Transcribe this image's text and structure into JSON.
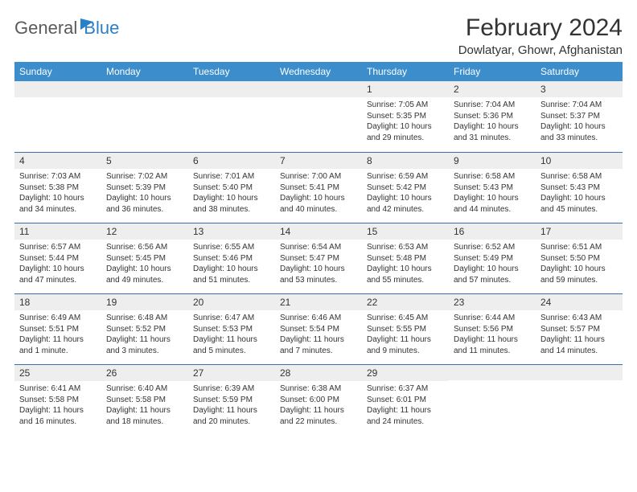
{
  "logo": {
    "general": "General",
    "blue": "Blue"
  },
  "title": "February 2024",
  "location": "Dowlatyar, Ghowr, Afghanistan",
  "header_bg": "#3c8dcc",
  "row_border": "#3c6fa6",
  "day_labels": [
    "Sunday",
    "Monday",
    "Tuesday",
    "Wednesday",
    "Thursday",
    "Friday",
    "Saturday"
  ],
  "weeks": [
    [
      null,
      null,
      null,
      null,
      {
        "n": "1",
        "rise": "7:05 AM",
        "set": "5:35 PM",
        "dl": "10 hours and 29 minutes."
      },
      {
        "n": "2",
        "rise": "7:04 AM",
        "set": "5:36 PM",
        "dl": "10 hours and 31 minutes."
      },
      {
        "n": "3",
        "rise": "7:04 AM",
        "set": "5:37 PM",
        "dl": "10 hours and 33 minutes."
      }
    ],
    [
      {
        "n": "4",
        "rise": "7:03 AM",
        "set": "5:38 PM",
        "dl": "10 hours and 34 minutes."
      },
      {
        "n": "5",
        "rise": "7:02 AM",
        "set": "5:39 PM",
        "dl": "10 hours and 36 minutes."
      },
      {
        "n": "6",
        "rise": "7:01 AM",
        "set": "5:40 PM",
        "dl": "10 hours and 38 minutes."
      },
      {
        "n": "7",
        "rise": "7:00 AM",
        "set": "5:41 PM",
        "dl": "10 hours and 40 minutes."
      },
      {
        "n": "8",
        "rise": "6:59 AM",
        "set": "5:42 PM",
        "dl": "10 hours and 42 minutes."
      },
      {
        "n": "9",
        "rise": "6:58 AM",
        "set": "5:43 PM",
        "dl": "10 hours and 44 minutes."
      },
      {
        "n": "10",
        "rise": "6:58 AM",
        "set": "5:43 PM",
        "dl": "10 hours and 45 minutes."
      }
    ],
    [
      {
        "n": "11",
        "rise": "6:57 AM",
        "set": "5:44 PM",
        "dl": "10 hours and 47 minutes."
      },
      {
        "n": "12",
        "rise": "6:56 AM",
        "set": "5:45 PM",
        "dl": "10 hours and 49 minutes."
      },
      {
        "n": "13",
        "rise": "6:55 AM",
        "set": "5:46 PM",
        "dl": "10 hours and 51 minutes."
      },
      {
        "n": "14",
        "rise": "6:54 AM",
        "set": "5:47 PM",
        "dl": "10 hours and 53 minutes."
      },
      {
        "n": "15",
        "rise": "6:53 AM",
        "set": "5:48 PM",
        "dl": "10 hours and 55 minutes."
      },
      {
        "n": "16",
        "rise": "6:52 AM",
        "set": "5:49 PM",
        "dl": "10 hours and 57 minutes."
      },
      {
        "n": "17",
        "rise": "6:51 AM",
        "set": "5:50 PM",
        "dl": "10 hours and 59 minutes."
      }
    ],
    [
      {
        "n": "18",
        "rise": "6:49 AM",
        "set": "5:51 PM",
        "dl": "11 hours and 1 minute."
      },
      {
        "n": "19",
        "rise": "6:48 AM",
        "set": "5:52 PM",
        "dl": "11 hours and 3 minutes."
      },
      {
        "n": "20",
        "rise": "6:47 AM",
        "set": "5:53 PM",
        "dl": "11 hours and 5 minutes."
      },
      {
        "n": "21",
        "rise": "6:46 AM",
        "set": "5:54 PM",
        "dl": "11 hours and 7 minutes."
      },
      {
        "n": "22",
        "rise": "6:45 AM",
        "set": "5:55 PM",
        "dl": "11 hours and 9 minutes."
      },
      {
        "n": "23",
        "rise": "6:44 AM",
        "set": "5:56 PM",
        "dl": "11 hours and 11 minutes."
      },
      {
        "n": "24",
        "rise": "6:43 AM",
        "set": "5:57 PM",
        "dl": "11 hours and 14 minutes."
      }
    ],
    [
      {
        "n": "25",
        "rise": "6:41 AM",
        "set": "5:58 PM",
        "dl": "11 hours and 16 minutes."
      },
      {
        "n": "26",
        "rise": "6:40 AM",
        "set": "5:58 PM",
        "dl": "11 hours and 18 minutes."
      },
      {
        "n": "27",
        "rise": "6:39 AM",
        "set": "5:59 PM",
        "dl": "11 hours and 20 minutes."
      },
      {
        "n": "28",
        "rise": "6:38 AM",
        "set": "6:00 PM",
        "dl": "11 hours and 22 minutes."
      },
      {
        "n": "29",
        "rise": "6:37 AM",
        "set": "6:01 PM",
        "dl": "11 hours and 24 minutes."
      },
      null,
      null
    ]
  ],
  "labels": {
    "sunrise": "Sunrise:",
    "sunset": "Sunset:",
    "daylight": "Daylight:"
  }
}
